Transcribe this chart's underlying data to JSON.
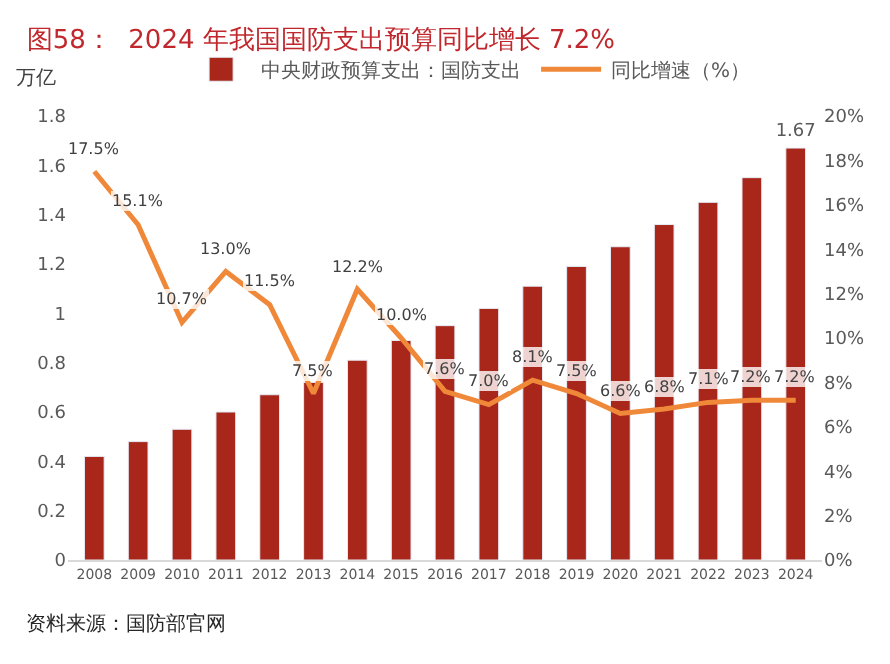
{
  "chart_data": {
    "type": "bar",
    "title": "图58：  2024 年我国国防支出预算同比增长 7.2%",
    "ylabel": "万亿",
    "annotations": [
      "资料来源：国防部官网"
    ],
    "categories": [
      "2008",
      "2009",
      "2010",
      "2011",
      "2012",
      "2013",
      "2014",
      "2015",
      "2016",
      "2017",
      "2018",
      "2019",
      "2020",
      "2021",
      "2022",
      "2023",
      "2024"
    ],
    "series": [
      {
        "name": "中央财政预算支出：国防支出",
        "color": "#a8261a",
        "values": [
          0.42,
          0.48,
          0.53,
          0.6,
          0.67,
          0.72,
          0.81,
          0.89,
          0.95,
          1.02,
          1.11,
          1.19,
          1.27,
          1.36,
          1.45,
          1.55,
          1.67
        ],
        "value_labels": [
          null,
          null,
          null,
          null,
          null,
          null,
          null,
          null,
          null,
          null,
          null,
          null,
          null,
          null,
          null,
          null,
          "1.67"
        ]
      },
      {
        "name": "同比增速（%）",
        "type": "line",
        "axis": "y2",
        "color": "#f0883a",
        "values": [
          17.5,
          15.1,
          10.7,
          13.0,
          11.5,
          7.5,
          12.2,
          10.0,
          7.6,
          7.0,
          8.1,
          7.5,
          6.6,
          6.8,
          7.1,
          7.2,
          7.2
        ],
        "value_labels": [
          "17.5%",
          "15.1%",
          "10.7%",
          "13.0%",
          "11.5%",
          "7.5%",
          "12.2%",
          "10.0%",
          "7.6%",
          "7.0%",
          "8.1%",
          "7.5%",
          "6.6%",
          "6.8%",
          "7.1%",
          "7.2%",
          "7.2%"
        ]
      }
    ],
    "ylim": [
      0,
      1.8
    ],
    "yticks": [
      0,
      0.2,
      0.4,
      0.6,
      0.8,
      1,
      1.2,
      1.4,
      1.6,
      1.8
    ],
    "y2lim": [
      0,
      20
    ],
    "y2ticks": [
      {
        "value": 0,
        "label": "0%"
      },
      {
        "value": 2,
        "label": "2%"
      },
      {
        "value": 4,
        "label": "4%"
      },
      {
        "value": 6,
        "label": "6%"
      },
      {
        "value": 8,
        "label": "8%"
      },
      {
        "value": 10,
        "label": "10%"
      },
      {
        "value": 12,
        "label": "12%"
      },
      {
        "value": 14,
        "label": "14%"
      },
      {
        "value": 16,
        "label": "16%"
      },
      {
        "value": 18,
        "label": "18%"
      },
      {
        "value": 20,
        "label": "20%"
      }
    ],
    "legend": "top",
    "marker": "none",
    "line_style": "solid"
  }
}
